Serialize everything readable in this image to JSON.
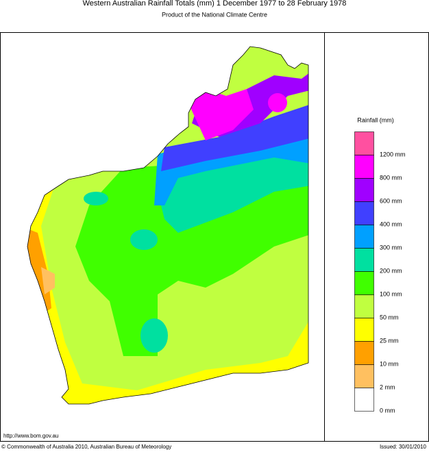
{
  "header": {
    "title": "Western Australian Rainfall Totals (mm) 1 December 1977 to 28 February 1978",
    "subtitle": "Product of the National Climate Centre"
  },
  "legend": {
    "title": "Rainfall (mm)",
    "items": [
      {
        "color": "#ff50a0",
        "label": "1200 mm"
      },
      {
        "color": "#ff00ff",
        "label": "800 mm"
      },
      {
        "color": "#a000ff",
        "label": "600 mm"
      },
      {
        "color": "#4040ff",
        "label": "400 mm"
      },
      {
        "color": "#00a0ff",
        "label": "300 mm"
      },
      {
        "color": "#00e0a0",
        "label": "200 mm"
      },
      {
        "color": "#40ff00",
        "label": "100 mm"
      },
      {
        "color": "#c0ff40",
        "label": "50 mm"
      },
      {
        "color": "#ffff00",
        "label": "25 mm"
      },
      {
        "color": "#ffa000",
        "label": "10 mm"
      },
      {
        "color": "#ffc060",
        "label": "2 mm"
      },
      {
        "color": "#ffffff",
        "label": "0 mm"
      }
    ]
  },
  "footer": {
    "url": "http://www.bom.gov.au",
    "copyright": "© Commonwealth of Australia 2010, Australian Bureau of Meteorology",
    "issued": "Issued: 30/01/2010"
  }
}
